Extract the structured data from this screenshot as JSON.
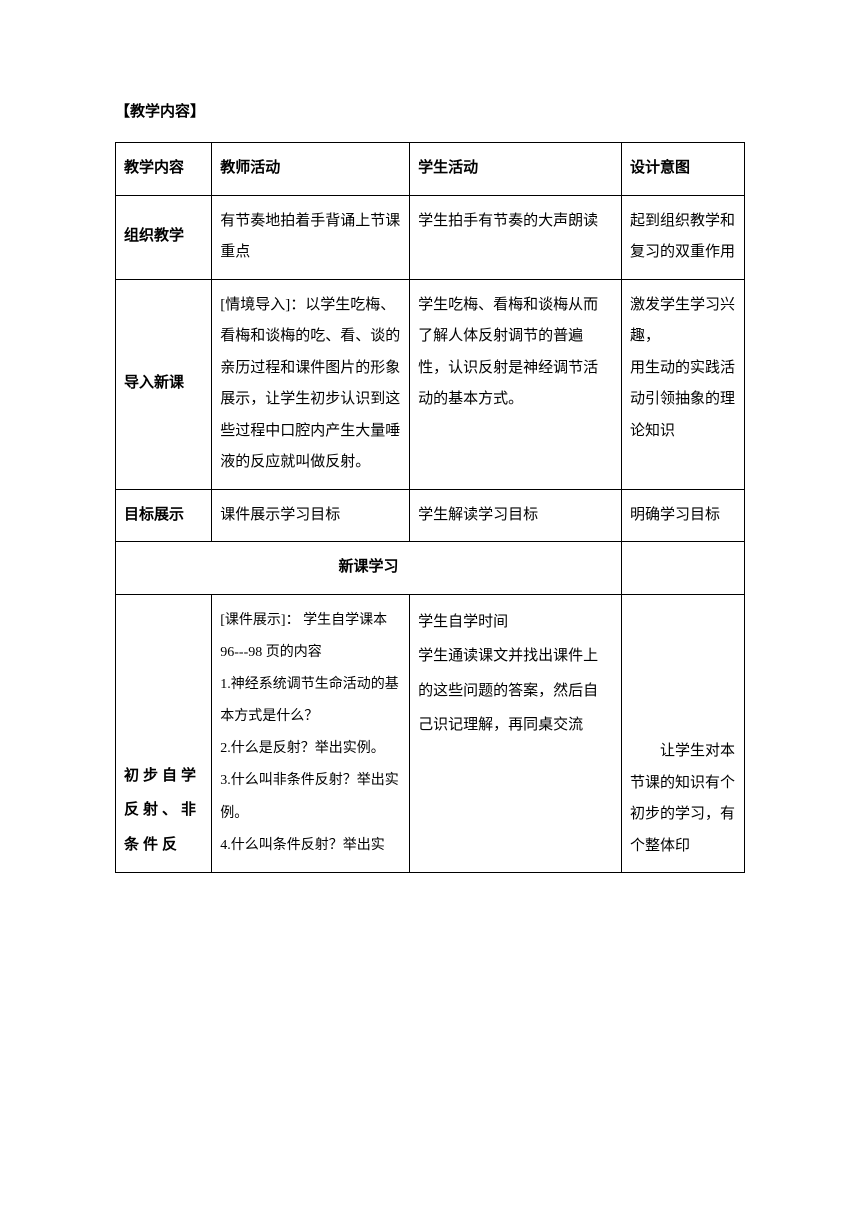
{
  "sectionTitle": "【教学内容】",
  "headers": {
    "c1": "教学内容",
    "c2": "教师活动",
    "c3": "学生活动",
    "c4": "设计意图"
  },
  "rows": {
    "organize": {
      "label": "组织教学",
      "teacher": "有节奏地拍着手背诵上节课重点",
      "student": "学生拍手有节奏的大声朗读",
      "intent": "起到组织教学和复习的双重作用"
    },
    "intro": {
      "label": "导入新课",
      "teacher": " [情境导入]：以学生吃梅、看梅和谈梅的吃、看、谈的亲历过程和课件图片的形象展示，让学生初步认识到这些过程中口腔内产生大量唾液的反应就叫做反射。",
      "student": "学生吃梅、看梅和谈梅从而 了解人体反射调节的普遍性，认识反射是神经调节活动的基本方式。",
      "intent": "激发学生学习兴趣，\n用生动的实践活动引领抽象的理论知识"
    },
    "goal": {
      "label": "目标展示",
      "teacher": "课件展示学习目标",
      "student": "学生解读学习目标",
      "intent": "明确学习目标"
    },
    "newLesson": "新课学习",
    "selfStudy": {
      "label": "初步自学反射、非条件反",
      "teacher": "[课件展示]： 学生自学课本96---98 页的内容\n1.神经系统调节生命活动的基本方式是什么？\n2.什么是反射？举出实例。\n3.什么叫非条件反射？举出实例。\n4.什么叫条件反射？举出实",
      "student": "学生自学时间\n学生通读课文并找出课件上的这些问题的答案，然后自己识记理解，再同桌交流",
      "intent": "让学生对本节课的知识有个初步的学习，有个整体印"
    }
  },
  "colors": {
    "text": "#000000",
    "border": "#000000",
    "bg": "#ffffff"
  },
  "fontsize_pt": 11
}
